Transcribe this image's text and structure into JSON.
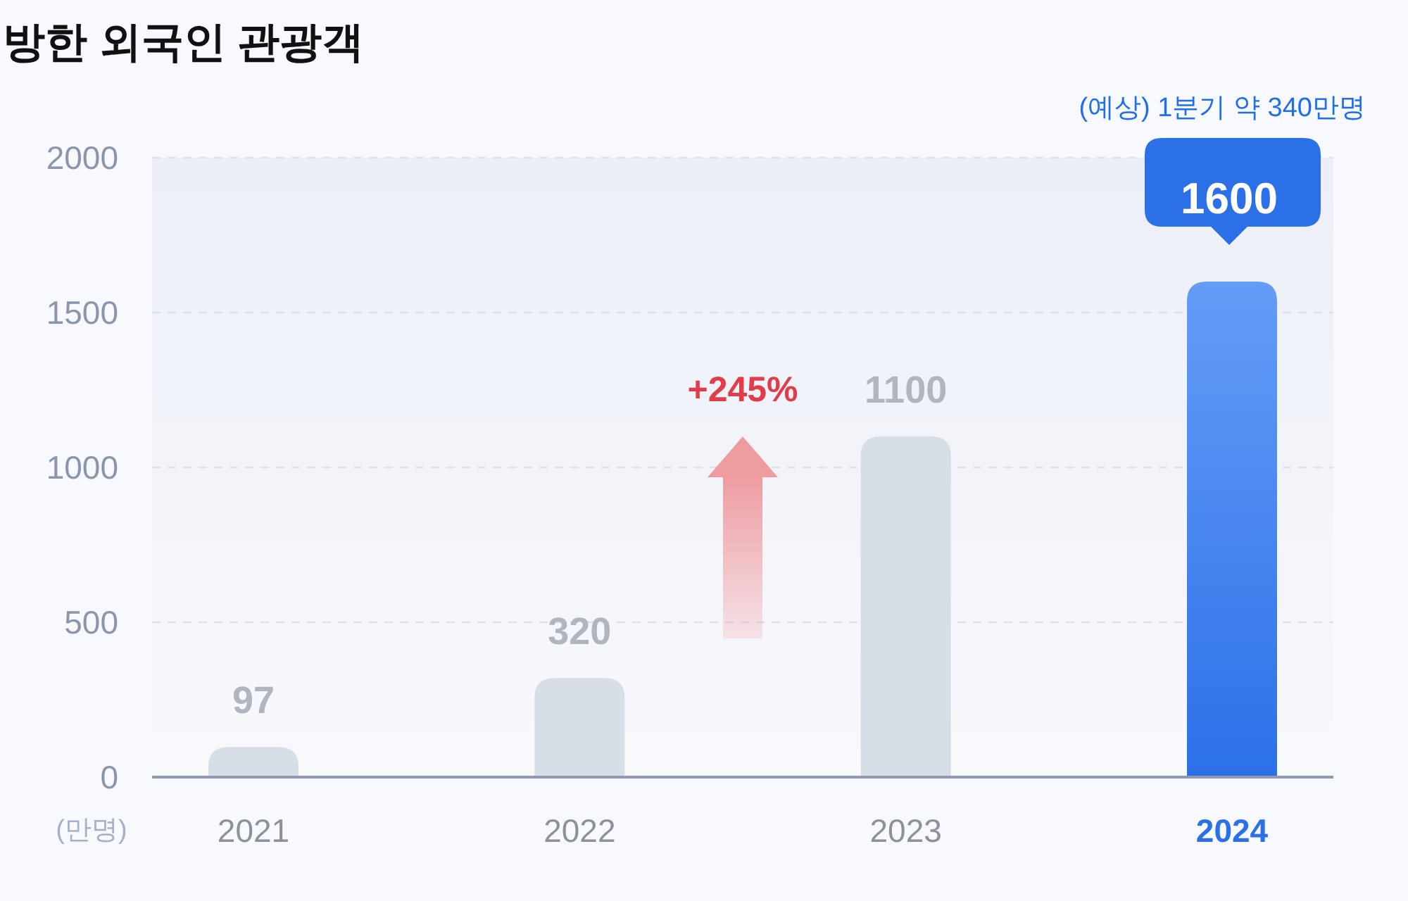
{
  "chart_data": {
    "type": "bar",
    "title": "방한 외국인 관광객",
    "ylabel": "(만명)",
    "annotations": [
      "(예상) 1분기 약 340만명",
      "+245%"
    ],
    "categories": [
      "2021",
      "2022",
      "2023",
      "2024"
    ],
    "values": [
      97,
      320,
      1100,
      1600
    ],
    "colors": [
      "#d8dee6",
      "#d8dee6",
      "#d8dee6",
      "#3a80f5"
    ],
    "ylim": [
      0,
      2000
    ],
    "yticks": [
      0,
      500,
      1000,
      1500,
      2000
    ],
    "grid": "y",
    "data_labels": true
  }
}
